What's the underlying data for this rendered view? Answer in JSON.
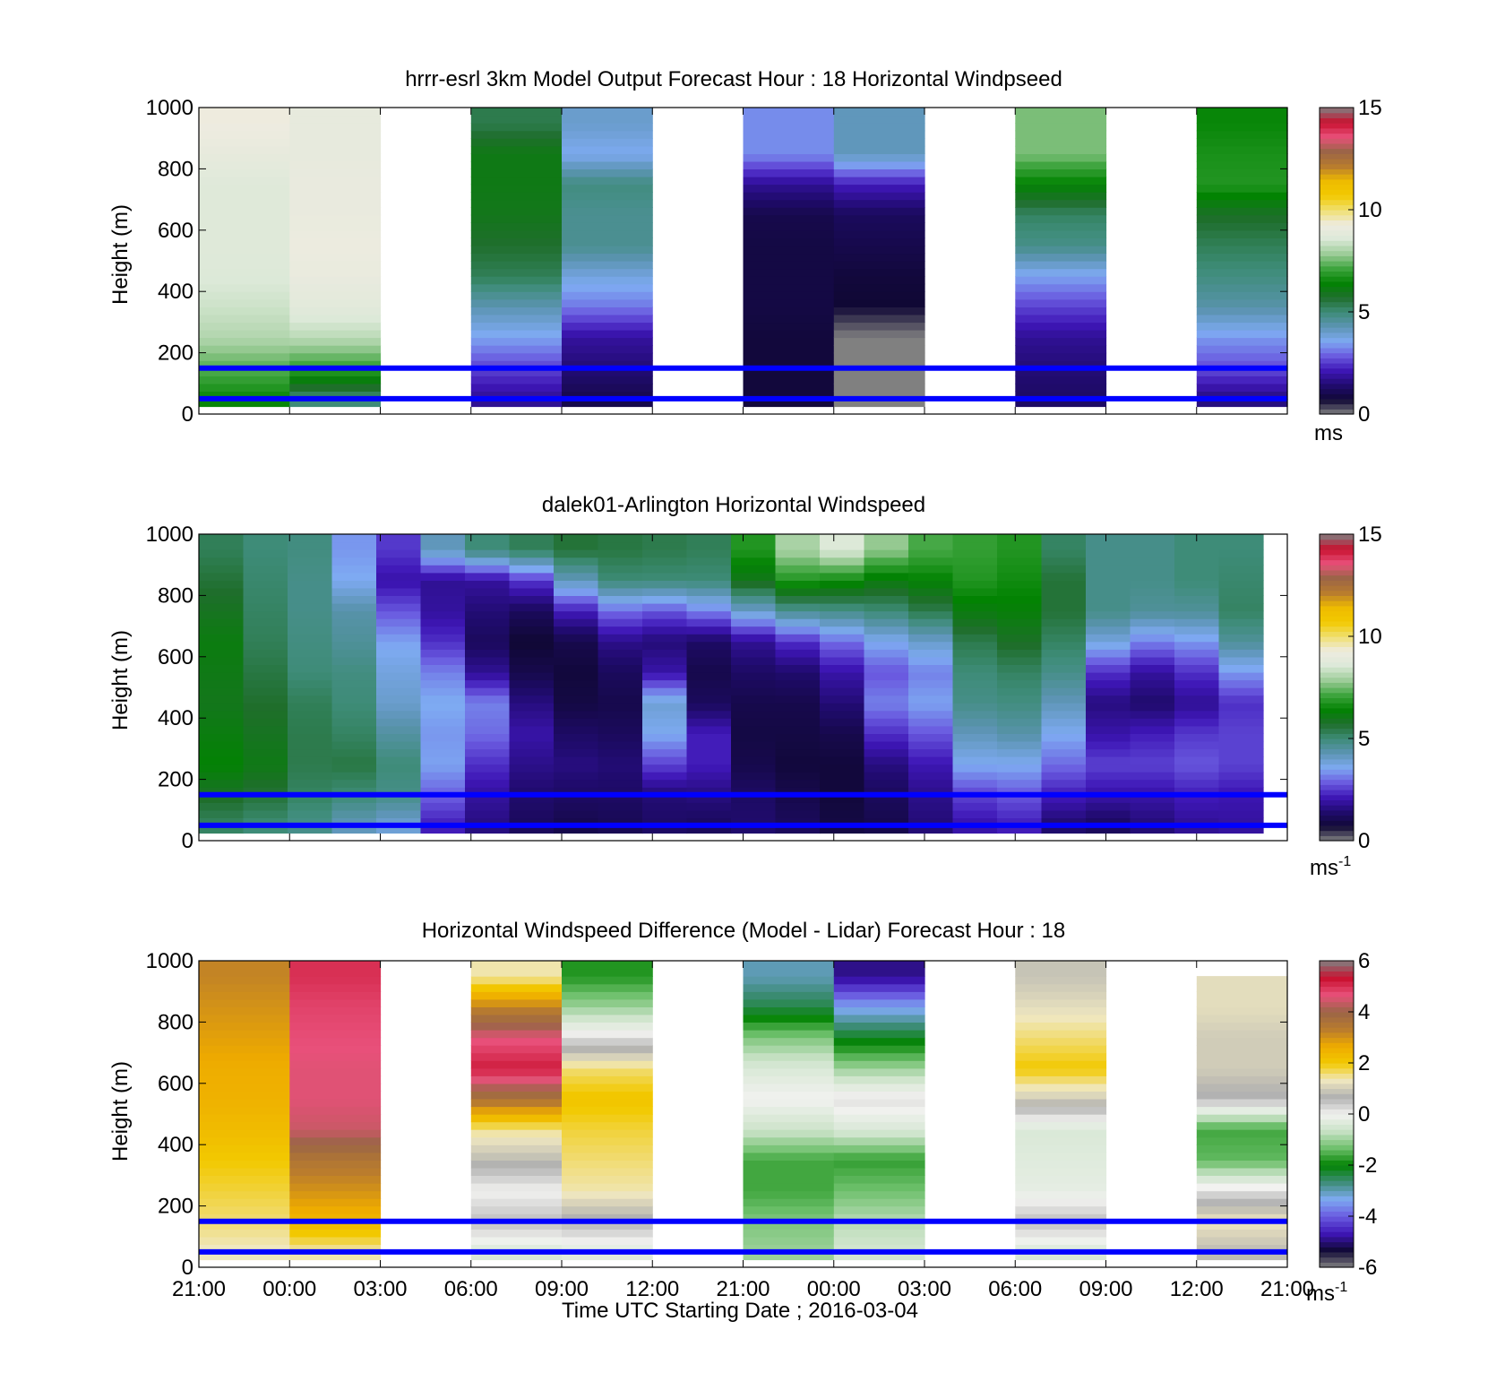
{
  "chart_data": [
    {
      "type": "heatmap",
      "title": "hrrr-esrl 3km Model Output   Forecast Hour : 18 Horizontal Windpseed",
      "ylabel": "Height (m)",
      "ylim": [
        0,
        1000
      ],
      "yticks": [
        0,
        200,
        400,
        600,
        800,
        1000
      ],
      "colorbar": {
        "ticks": [
          "0",
          "5",
          "10",
          "15"
        ],
        "range": [
          0,
          15
        ],
        "unit": "ms",
        "unit_sup": "",
        "colormap": "wind"
      },
      "heights": [
        50,
        150,
        250,
        350,
        450,
        550,
        650,
        750,
        850,
        950
      ],
      "columns": [
        {
          "x": 0,
          "values": [
            6.5,
            7.3,
            8.1,
            8.4,
            8.6,
            8.7,
            8.7,
            8.7,
            9.0,
            9.3
          ]
        },
        {
          "x": 1,
          "values": [
            5.0,
            7.0,
            8.2,
            8.8,
            9.1,
            9.2,
            9.1,
            9.1,
            9.0,
            9.0
          ]
        },
        {
          "x": 2,
          "values": null
        },
        {
          "x": 3,
          "values": [
            1.8,
            2.6,
            3.5,
            4.3,
            5.3,
            5.7,
            6.0,
            6.1,
            6.1,
            5.4
          ]
        },
        {
          "x": 4,
          "values": [
            1.0,
            1.5,
            1.9,
            3.1,
            3.8,
            4.7,
            4.7,
            4.9,
            3.6,
            4.0
          ]
        },
        {
          "x": 5,
          "values": null
        },
        {
          "x": 6,
          "values": [
            0.8,
            0.8,
            0.8,
            0.9,
            0.9,
            0.9,
            1.0,
            1.8,
            3.3,
            3.3
          ]
        },
        {
          "x": 7,
          "values": [
            0.0,
            0.0,
            0.0,
            0.7,
            0.8,
            1.0,
            1.2,
            2.2,
            4.2,
            4.2
          ]
        },
        {
          "x": 8,
          "values": null
        },
        {
          "x": 9,
          "values": [
            1.3,
            1.5,
            1.8,
            2.6,
            3.5,
            4.8,
            5.2,
            6.4,
            7.6,
            7.6
          ]
        },
        {
          "x": 10,
          "values": null
        },
        {
          "x": 11,
          "values": [
            1.6,
            2.7,
            3.4,
            4.4,
            4.9,
            5.3,
            5.8,
            6.8,
            6.7,
            6.5
          ]
        }
      ]
    },
    {
      "type": "heatmap",
      "title": "dalek01-Arlington  Horizontal Windspeed",
      "ylabel": "Height (m)",
      "ylim": [
        0,
        1000
      ],
      "yticks": [
        0,
        200,
        400,
        600,
        800,
        1000
      ],
      "colorbar": {
        "ticks": [
          "0",
          "5",
          "10",
          "15"
        ],
        "range": [
          0,
          15
        ],
        "unit": "ms",
        "unit_sup": "-1",
        "colormap": "wind"
      },
      "heights": [
        50,
        150,
        250,
        350,
        450,
        550,
        650,
        750,
        850,
        950
      ],
      "columns": [
        {
          "x": 0.0,
          "values": [
            5.2,
            5.8,
            6.4,
            6.2,
            6.0,
            6.1,
            6.2,
            5.9,
            5.6,
            5.3
          ]
        },
        {
          "x": 0.5,
          "values": [
            5.0,
            5.6,
            6.1,
            5.9,
            5.7,
            5.5,
            5.3,
            5.2,
            5.1,
            5.0
          ]
        },
        {
          "x": 1.0,
          "values": [
            4.8,
            5.2,
            5.4,
            5.4,
            5.3,
            5.0,
            4.9,
            4.8,
            4.8,
            4.9
          ]
        },
        {
          "x": 1.5,
          "values": [
            4.2,
            5.0,
            5.5,
            5.2,
            5.0,
            4.9,
            4.6,
            4.4,
            3.6,
            3.4
          ]
        },
        {
          "x": 2.0,
          "values": [
            3.9,
            4.8,
            5.0,
            4.5,
            4.0,
            3.8,
            3.5,
            2.8,
            2.0,
            2.5
          ]
        },
        {
          "x": 2.5,
          "values": [
            2.2,
            2.9,
            3.5,
            3.4,
            3.6,
            3.2,
            2.4,
            1.9,
            1.8,
            4.2
          ]
        },
        {
          "x": 3.0,
          "values": [
            1.6,
            1.9,
            2.4,
            3.0,
            3.2,
            1.8,
            1.2,
            1.5,
            1.9,
            5.0
          ]
        },
        {
          "x": 3.5,
          "values": [
            1.2,
            1.4,
            1.7,
            2.0,
            1.6,
            1.0,
            0.7,
            1.2,
            2.5,
            5.3
          ]
        },
        {
          "x": 4.0,
          "values": [
            1.0,
            1.3,
            1.6,
            1.3,
            0.9,
            0.8,
            1.0,
            2.2,
            4.2,
            5.6
          ]
        },
        {
          "x": 4.5,
          "values": [
            1.1,
            1.3,
            1.5,
            1.2,
            1.0,
            1.2,
            1.7,
            3.0,
            5.0,
            5.5
          ]
        },
        {
          "x": 5.0,
          "values": [
            1.3,
            1.5,
            2.6,
            3.6,
            3.9,
            2.0,
            1.5,
            2.8,
            5.0,
            5.4
          ]
        },
        {
          "x": 5.5,
          "values": [
            1.2,
            1.6,
            2.2,
            2.2,
            1.2,
            1.0,
            1.3,
            3.2,
            5.0,
            5.3
          ]
        },
        {
          "x": 6.0,
          "values": [
            1.4,
            1.3,
            1.0,
            0.9,
            1.0,
            1.3,
            1.8,
            4.0,
            6.0,
            6.8
          ]
        },
        {
          "x": 6.5,
          "values": [
            1.2,
            1.0,
            0.8,
            0.9,
            1.0,
            1.4,
            2.4,
            4.7,
            6.8,
            8.0
          ]
        },
        {
          "x": 7.0,
          "values": [
            0.9,
            0.8,
            0.8,
            1.0,
            1.5,
            2.0,
            3.0,
            4.8,
            6.6,
            8.6
          ]
        },
        {
          "x": 7.5,
          "values": [
            1.0,
            1.2,
            1.6,
            2.4,
            3.2,
            2.8,
            3.6,
            5.0,
            6.2,
            7.8
          ]
        },
        {
          "x": 8.0,
          "values": [
            1.5,
            1.7,
            2.1,
            2.8,
            3.5,
            3.2,
            4.0,
            5.4,
            6.4,
            7.2
          ]
        },
        {
          "x": 8.5,
          "values": [
            2.0,
            2.6,
            3.6,
            4.2,
            4.8,
            5.0,
            5.4,
            6.2,
            6.8,
            7.0
          ]
        },
        {
          "x": 9.0,
          "values": [
            2.2,
            2.8,
            3.6,
            4.4,
            4.9,
            5.2,
            5.8,
            6.3,
            6.6,
            6.8
          ]
        },
        {
          "x": 9.5,
          "values": [
            1.4,
            2.2,
            3.0,
            3.6,
            4.2,
            4.8,
            5.2,
            5.6,
            5.6,
            5.2
          ]
        },
        {
          "x": 10.0,
          "values": [
            1.2,
            2.0,
            2.6,
            2.0,
            1.6,
            2.4,
            3.8,
            4.8,
            4.8,
            4.8
          ]
        },
        {
          "x": 10.5,
          "values": [
            1.5,
            2.0,
            2.6,
            2.2,
            1.4,
            1.9,
            3.2,
            4.6,
            4.8,
            4.8
          ]
        },
        {
          "x": 11.0,
          "values": [
            1.8,
            2.2,
            2.8,
            2.5,
            1.8,
            2.4,
            3.4,
            4.6,
            5.0,
            5.0
          ]
        },
        {
          "x": 11.5,
          "values": [
            1.9,
            2.1,
            2.6,
            2.6,
            2.4,
            3.4,
            4.6,
            5.2,
            5.1,
            5.0
          ]
        }
      ]
    },
    {
      "type": "heatmap",
      "title": "Horizontal Windspeed Difference (Model - Lidar) Forecast Hour : 18",
      "ylabel": "Height (m)",
      "xlabel": "Time UTC  Starting Date ; 2016-03-04",
      "ylim": [
        0,
        1000
      ],
      "yticks": [
        0,
        200,
        400,
        600,
        800,
        1000
      ],
      "colorbar": {
        "ticks": [
          "-6",
          "-4",
          "-2",
          "0",
          "2",
          "4",
          "6"
        ],
        "range": [
          -6,
          6
        ],
        "unit": "ms",
        "unit_sup": "-1",
        "colormap": "diff"
      },
      "heights": [
        50,
        150,
        250,
        350,
        450,
        550,
        650,
        750,
        850,
        950
      ],
      "columns": [
        {
          "x": 0,
          "values": [
            1.3,
            1.6,
            1.8,
            2.0,
            2.3,
            2.5,
            2.6,
            2.8,
            3.0,
            3.2
          ]
        },
        {
          "x": 1,
          "values": [
            1.4,
            2.4,
            3.0,
            3.5,
            4.4,
            4.6,
            4.6,
            4.7,
            4.8,
            5.0
          ]
        },
        {
          "x": 2,
          "values": null
        },
        {
          "x": 3,
          "values": [
            -0.4,
            0.5,
            0.0,
            0.8,
            1.5,
            3.6,
            5.2,
            4.6,
            3.2,
            1.4
          ]
        },
        {
          "x": 4,
          "values": [
            -0.3,
            0.6,
            1.4,
            1.6,
            1.8,
            2.1,
            1.6,
            0.2,
            -1.0,
            -1.8
          ]
        },
        {
          "x": 5,
          "values": null
        },
        {
          "x": 6,
          "values": [
            -1.0,
            -1.2,
            -1.6,
            -1.6,
            -0.6,
            0.0,
            -0.4,
            -1.2,
            -2.4,
            -3.0
          ]
        },
        {
          "x": 7,
          "values": [
            -0.5,
            -0.8,
            -1.3,
            -1.7,
            -0.4,
            0.2,
            -1.0,
            -2.2,
            -3.4,
            -4.9
          ]
        },
        {
          "x": 8,
          "values": null
        },
        {
          "x": 9,
          "values": [
            -0.4,
            0.5,
            -0.2,
            -0.3,
            -0.4,
            1.0,
            2.0,
            1.6,
            1.2,
            0.9
          ]
        },
        {
          "x": 10,
          "values": null
        },
        {
          "x": 11,
          "values": [
            0.8,
            1.3,
            0.2,
            -1.4,
            -1.6,
            0.6,
            1.0,
            1.0,
            1.2,
            null
          ]
        }
      ]
    }
  ],
  "layout_common": {
    "x_tick_labels": [
      "21:00",
      "00:00",
      "03:00",
      "06:00",
      "09:00",
      "12:00",
      "21:00",
      "00:00",
      "03:00",
      "06:00",
      "09:00",
      "12:00",
      "21:00"
    ],
    "reference_lines_m": [
      50,
      150
    ],
    "reference_line_color": "#0000ff",
    "colors": {
      "wind": [
        "#808080",
        "#100835",
        "#200b6e",
        "#3e16b6",
        "#6a5be0",
        "#7eaaf2",
        "#5c94b3",
        "#3e8c78",
        "#1f6e2c",
        "#028302",
        "#3fa53f",
        "#9ccc98",
        "#dce9d8",
        "#eeebe0",
        "#f0e070",
        "#f2c900",
        "#eebb00",
        "#b87b2e",
        "#9a6547",
        "#e8507a",
        "#c8102e",
        "#808080"
      ],
      "diff": [
        "#808080",
        "#100835",
        "#3e16b6",
        "#6a5be0",
        "#7eaaf2",
        "#3e8c78",
        "#028302",
        "#6cbf6a",
        "#c9e2c6",
        "#f2f2f0",
        "#b0b0b0",
        "#f0e8c0",
        "#f2c900",
        "#eeaa00",
        "#b87b2e",
        "#9a6547",
        "#e8507a",
        "#c8102e",
        "#808080"
      ]
    }
  }
}
